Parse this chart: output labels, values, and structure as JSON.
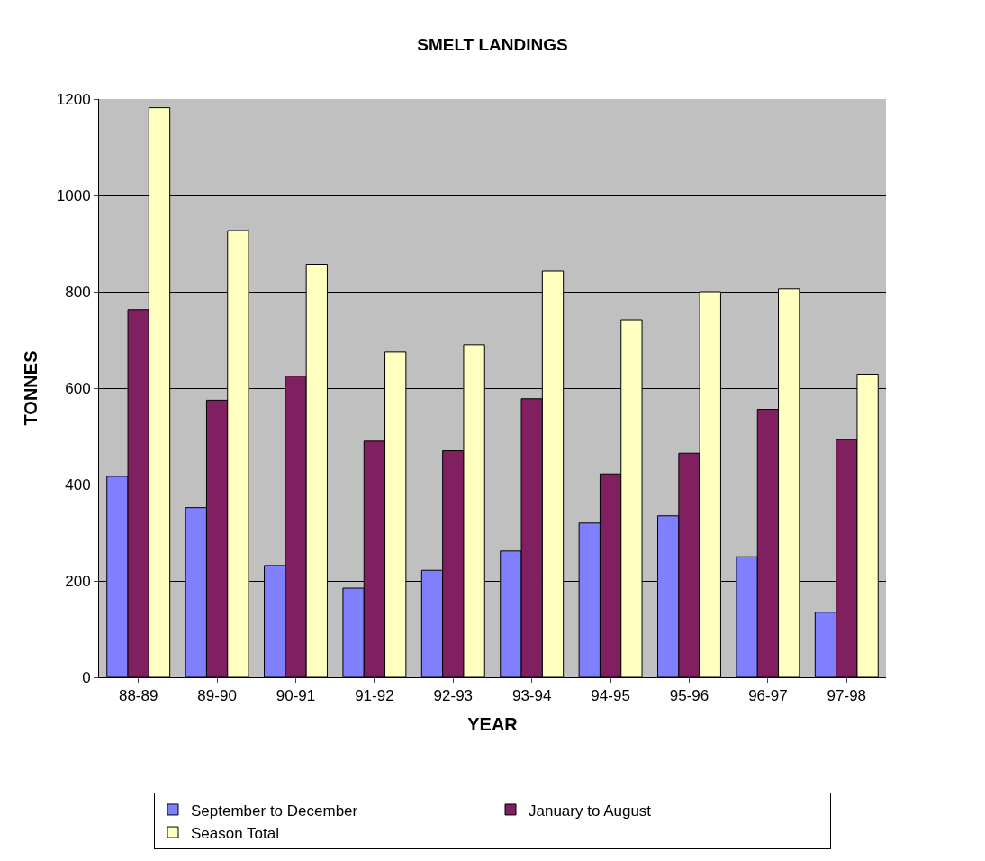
{
  "chart_data": {
    "type": "bar",
    "title": "SMELT LANDINGS",
    "xlabel": "YEAR",
    "ylabel": "TONNES",
    "categories": [
      "88-89",
      "89-90",
      "90-91",
      "91-92",
      "92-93",
      "93-94",
      "94-95",
      "95-96",
      "96-97",
      "97-98"
    ],
    "series": [
      {
        "name": "September to December",
        "color": "#8080ff",
        "values": [
          417,
          352,
          232,
          185,
          222,
          262,
          320,
          335,
          250,
          135
        ]
      },
      {
        "name": "January to August",
        "color": "#802060",
        "values": [
          763,
          575,
          625,
          490,
          470,
          578,
          422,
          465,
          556,
          494
        ]
      },
      {
        "name": "Season Total",
        "color": "#ffffc0",
        "values": [
          1182,
          927,
          857,
          675,
          690,
          843,
          742,
          800,
          806,
          629
        ]
      }
    ],
    "ylim": [
      0,
      1200
    ],
    "yticks": [
      0,
      200,
      400,
      600,
      800,
      1000,
      1200
    ],
    "grid": "y",
    "legend": "bottom"
  }
}
